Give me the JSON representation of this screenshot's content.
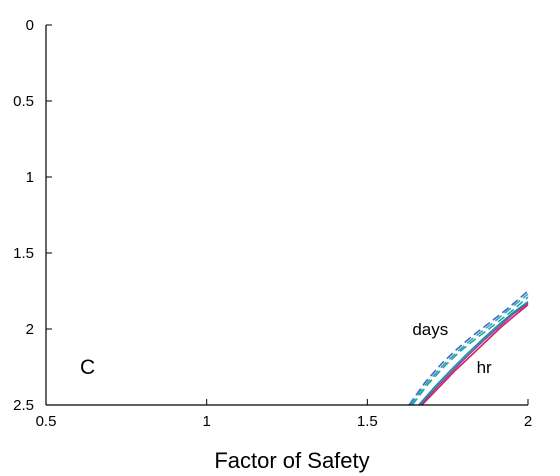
{
  "chart_data": {
    "type": "line",
    "title": "",
    "xlabel": "Factor of Safety",
    "ylabel": "",
    "xlim": [
      0.5,
      2
    ],
    "ylim": [
      0,
      2.5
    ],
    "y_inverted": true,
    "x_ticks": [
      "0.5",
      "1",
      "1.5",
      "2"
    ],
    "y_ticks": [
      "0",
      "0.5",
      "1",
      "1.5",
      "2",
      "2.5"
    ],
    "grid": false,
    "panel_label": "C",
    "annotations": [
      {
        "text": "days",
        "x": 1.64,
        "y": 2.0
      },
      {
        "text": "hr",
        "x": 1.84,
        "y": 2.25
      }
    ],
    "series": [
      {
        "style": "solid",
        "color": "#e0185c",
        "x": [
          1.67,
          1.72,
          1.77,
          1.82,
          1.87,
          1.92,
          1.96,
          2.0
        ],
        "y": [
          2.5,
          2.39,
          2.28,
          2.18,
          2.08,
          1.98,
          1.91,
          1.84
        ]
      },
      {
        "style": "solid",
        "color": "#7b4fa0",
        "x": [
          1.665,
          1.715,
          1.765,
          1.815,
          1.865,
          1.915,
          1.955,
          2.0
        ],
        "y": [
          2.5,
          2.385,
          2.275,
          2.17,
          2.07,
          1.975,
          1.9,
          1.83
        ]
      },
      {
        "style": "solid",
        "color": "#1a8fb0",
        "x": [
          1.66,
          1.71,
          1.76,
          1.81,
          1.86,
          1.91,
          1.955,
          2.0
        ],
        "y": [
          2.5,
          2.38,
          2.27,
          2.165,
          2.065,
          1.97,
          1.89,
          1.82
        ]
      },
      {
        "style": "dashed",
        "color": "#3d6fb8",
        "x": [
          1.63,
          1.68,
          1.73,
          1.78,
          1.83,
          1.88,
          1.94,
          2.0
        ],
        "y": [
          2.5,
          2.35,
          2.23,
          2.13,
          2.04,
          1.96,
          1.86,
          1.75
        ]
      },
      {
        "style": "dashed",
        "color": "#1fae8a",
        "x": [
          1.64,
          1.69,
          1.74,
          1.79,
          1.84,
          1.89,
          1.945,
          2.0
        ],
        "y": [
          2.5,
          2.36,
          2.245,
          2.145,
          2.06,
          1.98,
          1.89,
          1.79
        ]
      },
      {
        "style": "dashed",
        "color": "#3aa0d8",
        "x": [
          1.635,
          1.685,
          1.735,
          1.785,
          1.835,
          1.885,
          1.94,
          2.0
        ],
        "y": [
          2.5,
          2.355,
          2.24,
          2.14,
          2.05,
          1.97,
          1.875,
          1.77
        ]
      }
    ]
  }
}
